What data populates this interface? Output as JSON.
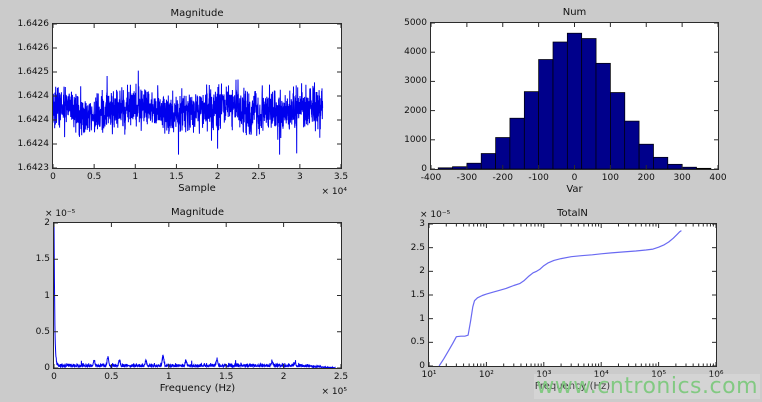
{
  "figure": {
    "background": "#cbcbcb",
    "axes_background": "#ffffff",
    "axes_edge": "#2b2b2b",
    "line_color": "#0000ee",
    "hist_fill": "#00008b",
    "hist_edge": "#000000",
    "curve_color": "#6a6af2"
  },
  "watermark": {
    "text": "www.cntronics.com",
    "color": "#7dc87d"
  },
  "chart_data": [
    {
      "id": "signal-magnitude-vs-sample",
      "type": "line",
      "title": "Magnitude",
      "xlabel": "Sample",
      "ylabel": "",
      "x_scale_label": "× 10⁴",
      "xlim": [
        0,
        35000
      ],
      "ylim": [
        1.6423,
        1.6426
      ],
      "xtick_labels": [
        "0",
        "0.5",
        "1",
        "1.5",
        "2",
        "2.5",
        "3",
        "3.5"
      ],
      "ytick_labels": [
        "1.6423",
        "1.6424",
        "1.6424",
        "1.6424",
        "1.6425",
        "1.6426",
        "1.6426"
      ],
      "grid": false,
      "legend": null,
      "signal": {
        "description": "dense blue broadband noise trace, 0 to 32768 samples",
        "mean": 1.64242,
        "noise_sigma": 2e-05,
        "band_min": 1.64233,
        "band_max": 1.64252,
        "x_end": 32768
      }
    },
    {
      "id": "histogram-num-vs-var",
      "type": "bar",
      "title": "Num",
      "xlabel": "Var",
      "ylabel": "",
      "xlim": [
        -400,
        400
      ],
      "ylim": [
        0,
        5000
      ],
      "xtick_labels": [
        "-400",
        "-300",
        "-200",
        "-100",
        "0",
        "100",
        "200",
        "300",
        "400"
      ],
      "ytick_labels": [
        "0",
        "1000",
        "2000",
        "3000",
        "4000",
        "5000"
      ],
      "grid": false,
      "bins": {
        "width": 40,
        "centers": [
          -360,
          -320,
          -280,
          -240,
          -200,
          -160,
          -120,
          -80,
          -40,
          0,
          40,
          80,
          120,
          160,
          200,
          240,
          280,
          320,
          360
        ],
        "counts": [
          40,
          80,
          200,
          530,
          1080,
          1740,
          2650,
          3750,
          4350,
          4650,
          4470,
          3620,
          2620,
          1640,
          850,
          400,
          160,
          60,
          25
        ]
      }
    },
    {
      "id": "spectrum-magnitude-vs-frequency",
      "type": "line",
      "title": "Magnitude",
      "xlabel": "Frequency (Hz)",
      "ylabel": "",
      "x_scale_label": "× 10⁵",
      "y_scale_label": "× 10⁻⁵",
      "xlim": [
        0,
        250000
      ],
      "ylim": [
        0,
        2e-05
      ],
      "y_unit": 1e-05,
      "xtick_labels": [
        "0",
        "0.5",
        "1",
        "1.5",
        "2",
        "2.5"
      ],
      "ytick_labels": [
        "0",
        "0.5",
        "1",
        "1.5",
        "2"
      ],
      "grid": false,
      "dc_peak_e5": 2.0,
      "noise_floor_e5": 0.04,
      "spikes_e5": [
        {
          "x": 35000,
          "h": 0.08
        },
        {
          "x": 47000,
          "h": 0.13
        },
        {
          "x": 57000,
          "h": 0.08
        },
        {
          "x": 80000,
          "h": 0.07
        },
        {
          "x": 95000,
          "h": 0.15
        },
        {
          "x": 115000,
          "h": 0.07
        },
        {
          "x": 142000,
          "h": 0.1
        },
        {
          "x": 190000,
          "h": 0.06
        },
        {
          "x": 210000,
          "h": 0.05
        }
      ],
      "rolloff_start": 215000,
      "x_end": 245000
    },
    {
      "id": "totaln-vs-frequency-log",
      "type": "line",
      "title": "TotalN",
      "xlabel": "Frequency (Hz)",
      "ylabel": "",
      "y_scale_label": "× 10⁻⁵",
      "x_scale": "log",
      "xlim": [
        10,
        1000000
      ],
      "ylim": [
        0,
        3e-05
      ],
      "y_unit": 1e-05,
      "xtick_labels": [
        "10¹",
        "10²",
        "10³",
        "10⁴",
        "10⁵",
        "10⁶"
      ],
      "ytick_labels": [
        "0",
        "0.5",
        "1",
        "1.5",
        "2",
        "2.5",
        "3"
      ],
      "grid": false,
      "points_e5": [
        [
          15,
          0
        ],
        [
          18,
          0.15
        ],
        [
          22,
          0.33
        ],
        [
          26,
          0.48
        ],
        [
          30,
          0.62
        ],
        [
          36,
          0.63
        ],
        [
          42,
          0.63
        ],
        [
          48,
          0.65
        ],
        [
          53,
          0.95
        ],
        [
          58,
          1.25
        ],
        [
          62,
          1.38
        ],
        [
          70,
          1.44
        ],
        [
          85,
          1.49
        ],
        [
          100,
          1.52
        ],
        [
          130,
          1.56
        ],
        [
          170,
          1.6
        ],
        [
          220,
          1.64
        ],
        [
          300,
          1.7
        ],
        [
          380,
          1.74
        ],
        [
          450,
          1.8
        ],
        [
          550,
          1.9
        ],
        [
          650,
          1.97
        ],
        [
          750,
          2.0
        ],
        [
          850,
          2.04
        ],
        [
          1000,
          2.12
        ],
        [
          1200,
          2.18
        ],
        [
          1500,
          2.23
        ],
        [
          2000,
          2.27
        ],
        [
          3000,
          2.31
        ],
        [
          4500,
          2.33
        ],
        [
          7000,
          2.35
        ],
        [
          10000,
          2.37
        ],
        [
          15000,
          2.39
        ],
        [
          25000,
          2.41
        ],
        [
          40000,
          2.43
        ],
        [
          60000,
          2.45
        ],
        [
          80000,
          2.47
        ],
        [
          100000,
          2.51
        ],
        [
          125000,
          2.56
        ],
        [
          150000,
          2.62
        ],
        [
          180000,
          2.7
        ],
        [
          210000,
          2.78
        ],
        [
          235000,
          2.84
        ],
        [
          250000,
          2.86
        ]
      ]
    }
  ]
}
